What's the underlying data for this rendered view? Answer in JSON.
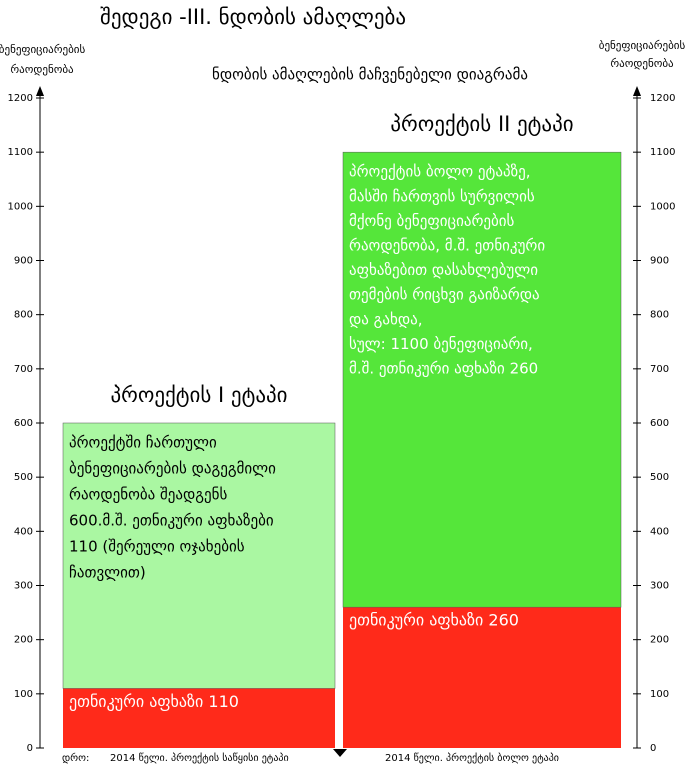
{
  "chart_data": {
    "type": "stacked_bar",
    "title": "შედეგი -III. ნდობის ამაღლება",
    "subtitle": "ნდობის ამაღლების მაჩვენებელი დიაგრამა",
    "y_label": [
      "ბენეფიციარების",
      "რაოდენობა"
    ],
    "y2_label": [
      "ბენეფიციარების",
      "რაოდენობა"
    ],
    "x_label": "დრო:",
    "categories": [
      "პროექტის I ეტაპი",
      "პროექტის II ეტაპი"
    ],
    "time_labels": [
      "2014 წელი. პროექტის საწყისი ეტაპი",
      "2014 წელი. პროექტის ბოლო ეტაპი"
    ],
    "series": [
      {
        "color": "#ff2a1a",
        "values": [
          110,
          260
        ],
        "value_labels": [
          "ეთნიკური აფხაზი 110",
          "ეთნიკური აფხაზი 260"
        ]
      },
      {
        "colors": [
          "#aaf7a2",
          "#55e63a"
        ],
        "values": [
          490,
          840
        ]
      }
    ],
    "notes": [
      [
        "პროექტში ჩართული",
        "ბენეფიციარების დაგეგმილი",
        "რაოდენობა შეადგენს",
        "600.მ.შ. ეთნიკური აფხაზები",
        "110 (შერეული ოჯახების",
        "ჩათვლით)"
      ],
      [
        "პროექტის ბოლო ეტაპზე,",
        "მასში ჩართვის სურვილის",
        "მქონე ბენეფიციარების",
        "რაოდენობა, მ.შ. ეთნიკური",
        "აფხაზებით დასახლებული",
        "თემების რიცხვი გაიზარდა",
        "და გახდა,",
        "სულ: 1100  ბენეფიციარი,",
        "მ.შ. ეთნიკური აფხაზი   260"
      ]
    ],
    "ylim": [
      0,
      1200
    ],
    "yticks": [
      0,
      100,
      200,
      300,
      400,
      500,
      600,
      700,
      800,
      900,
      1000,
      1100,
      1200
    ]
  }
}
